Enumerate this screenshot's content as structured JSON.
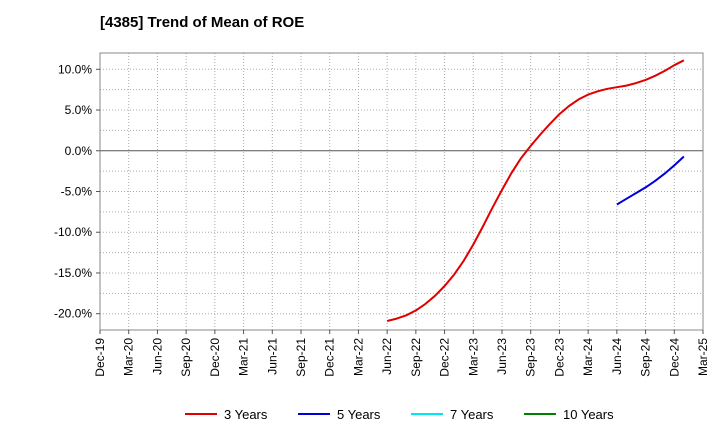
{
  "chart_data": {
    "type": "line",
    "title": "[4385]  Trend of Mean of ROE",
    "xlabel": "",
    "ylabel": "",
    "ylim": [
      -22,
      12
    ],
    "y_ticks": [
      10,
      5,
      0,
      -5,
      -10,
      -15,
      -20
    ],
    "y_tick_labels": [
      "10.0%",
      "5.0%",
      "0.0%",
      "-5.0%",
      "-10.0%",
      "-15.0%",
      "-20.0%"
    ],
    "x_tick_labels": [
      "Dec-19",
      "Mar-20",
      "Jun-20",
      "Sep-20",
      "Dec-20",
      "Mar-21",
      "Jun-21",
      "Sep-21",
      "Dec-21",
      "Mar-22",
      "Jun-22",
      "Sep-22",
      "Dec-22",
      "Mar-23",
      "Jun-23",
      "Sep-23",
      "Dec-23",
      "Mar-24",
      "Jun-24",
      "Sep-24",
      "Dec-24",
      "Mar-25"
    ],
    "grid": true,
    "legend_position": "bottom",
    "series": [
      {
        "name": "3 Years",
        "color": "#e00000",
        "points": [
          [
            "Jun-22",
            -20.9
          ],
          [
            "Jul-22",
            -20.6
          ],
          [
            "Aug-22",
            -20.2
          ],
          [
            "Sep-22",
            -19.6
          ],
          [
            "Oct-22",
            -18.8
          ],
          [
            "Nov-22",
            -17.8
          ],
          [
            "Dec-22",
            -16.6
          ],
          [
            "Jan-23",
            -15.2
          ],
          [
            "Feb-23",
            -13.5
          ],
          [
            "Mar-23",
            -11.5
          ],
          [
            "Apr-23",
            -9.3
          ],
          [
            "May-23",
            -7.0
          ],
          [
            "Jun-23",
            -4.8
          ],
          [
            "Jul-23",
            -2.7
          ],
          [
            "Aug-23",
            -0.9
          ],
          [
            "Sep-23",
            0.6
          ],
          [
            "Oct-23",
            2.0
          ],
          [
            "Nov-23",
            3.3
          ],
          [
            "Dec-23",
            4.5
          ],
          [
            "Jan-24",
            5.5
          ],
          [
            "Feb-24",
            6.3
          ],
          [
            "Mar-24",
            6.9
          ],
          [
            "Apr-24",
            7.3
          ],
          [
            "May-24",
            7.6
          ],
          [
            "Jun-24",
            7.8
          ],
          [
            "Jul-24",
            8.0
          ],
          [
            "Aug-24",
            8.3
          ],
          [
            "Sep-24",
            8.7
          ],
          [
            "Oct-24",
            9.2
          ],
          [
            "Nov-24",
            9.8
          ],
          [
            "Dec-24",
            10.5
          ],
          [
            "Jan-25",
            11.1
          ]
        ]
      },
      {
        "name": "5 Years",
        "color": "#0000dd",
        "points": [
          [
            "Jun-24",
            -6.6
          ],
          [
            "Jul-24",
            -5.9
          ],
          [
            "Aug-24",
            -5.2
          ],
          [
            "Sep-24",
            -4.5
          ],
          [
            "Oct-24",
            -3.7
          ],
          [
            "Nov-24",
            -2.8
          ],
          [
            "Dec-24",
            -1.8
          ],
          [
            "Jan-25",
            -0.7
          ]
        ]
      },
      {
        "name": "7 Years",
        "color": "#00e5ee",
        "points": []
      },
      {
        "name": "10 Years",
        "color": "#008000",
        "points": []
      }
    ]
  }
}
